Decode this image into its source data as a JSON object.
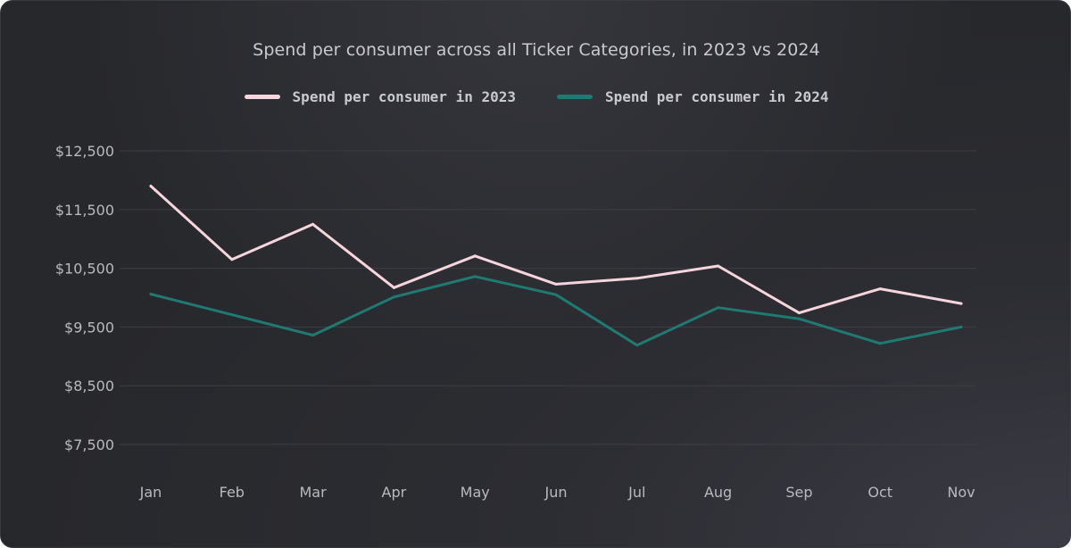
{
  "chart_data": {
    "type": "line",
    "title": "Spend per consumer across all Ticker Categories, in 2023 vs 2024",
    "categories": [
      "Jan",
      "Feb",
      "Mar",
      "Apr",
      "May",
      "Jun",
      "Jul",
      "Aug",
      "Sep",
      "Oct",
      "Nov"
    ],
    "yticks": [
      7500,
      8500,
      9500,
      10500,
      11500,
      12500
    ],
    "ytick_labels": [
      "$7,500",
      "$8,500",
      "$9,500",
      "$10,500",
      "$11,500",
      "$12,500"
    ],
    "ylim": [
      7500,
      12500
    ],
    "grid": true,
    "legend_position": "top-center",
    "series": [
      {
        "name": "Spend per consumer in 2023",
        "color": "#f6d5dc",
        "values": [
          11900,
          10650,
          11250,
          10170,
          10710,
          10230,
          10330,
          10540,
          9740,
          10150,
          9900
        ]
      },
      {
        "name": "Spend per consumer in 2024",
        "color": "#1f7a73",
        "values": [
          10060,
          9710,
          9360,
          10010,
          10360,
          10050,
          9190,
          9830,
          9640,
          9220,
          9500
        ]
      }
    ]
  }
}
